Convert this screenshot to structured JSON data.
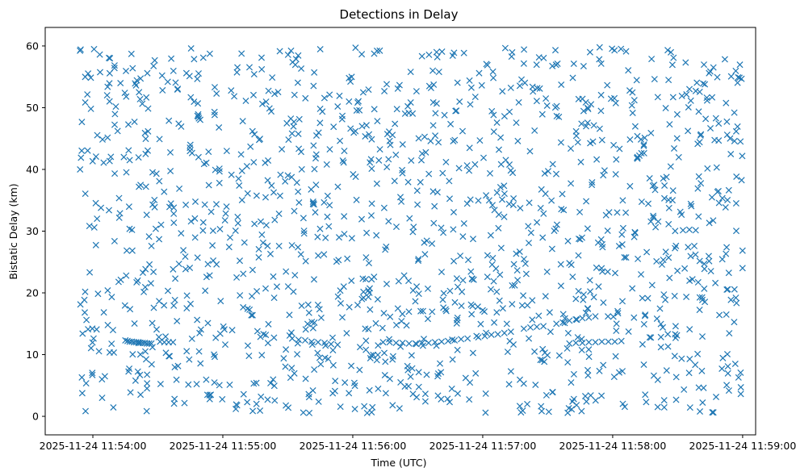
{
  "chart_data": {
    "type": "scatter",
    "title": "Detections in Delay",
    "xlabel": "Time (UTC)",
    "ylabel": "Bistatic Delay (km)",
    "marker": "x",
    "series_color": "#1f77b4",
    "x_unit": "seconds since 2025-11-24 11:54:00",
    "xlim": [
      -22,
      306
    ],
    "ylim": [
      -3,
      63
    ],
    "x_ticks": [
      0,
      60,
      120,
      180,
      240,
      300
    ],
    "x_tick_labels": [
      "2025-11-24 11:54:00",
      "2025-11-24 11:55:00",
      "2025-11-24 11:56:00",
      "2025-11-24 11:57:00",
      "2025-11-24 11:58:00",
      "2025-11-24 11:59:00"
    ],
    "y_ticks": [
      0,
      10,
      20,
      30,
      40,
      50,
      60
    ],
    "y_tick_labels": [
      "0",
      "10",
      "20",
      "30",
      "40",
      "50",
      "60"
    ],
    "track_segments": [
      {
        "t": [
          15,
          16,
          17,
          18,
          19,
          20,
          21,
          22,
          23,
          24,
          25,
          26,
          27
        ],
        "delay": [
          12.3,
          12.2,
          12.1,
          12.1,
          12.0,
          12.0,
          12.0,
          11.9,
          11.9,
          11.9,
          11.8,
          11.8,
          11.8
        ]
      },
      {
        "t": [
          31,
          33,
          35,
          37
        ],
        "delay": [
          12.1,
          12.0,
          12.0,
          12.0
        ]
      },
      {
        "t": [
          92,
          95,
          98,
          101,
          104,
          107,
          110,
          113
        ],
        "delay": [
          12.6,
          12.4,
          12.3,
          12.1,
          12.0,
          11.9,
          11.7,
          11.6
        ]
      },
      {
        "t": [
          134,
          137,
          140,
          143,
          146,
          149,
          152,
          155,
          158,
          161,
          164,
          167,
          170,
          173
        ],
        "delay": [
          12.0,
          12.0,
          11.9,
          11.9,
          11.8,
          11.8,
          11.9,
          11.9,
          12.0,
          12.1,
          12.2,
          12.3,
          12.5,
          12.6
        ]
      },
      {
        "t": [
          178,
          181,
          184,
          187,
          190,
          193
        ],
        "delay": [
          12.8,
          13.0,
          13.2,
          13.3,
          13.5,
          13.7
        ]
      },
      {
        "t": [
          199,
          202,
          205,
          208
        ],
        "delay": [
          14.2,
          14.4,
          14.5,
          14.6
        ]
      },
      {
        "t": [
          214,
          217,
          220,
          223,
          226,
          229,
          232
        ],
        "delay": [
          15.0,
          15.2,
          15.5,
          15.7,
          15.9,
          16.0,
          16.2
        ]
      },
      {
        "t": [
          220,
          223,
          226,
          229,
          232,
          235,
          238,
          241,
          244
        ],
        "delay": [
          11.8,
          11.9,
          11.9,
          12.0,
          12.0,
          12.1,
          12.1,
          12.1,
          12.2
        ]
      }
    ],
    "clutter_count": 1400,
    "clutter_seed": 1337,
    "clutter_range": {
      "t": [
        -6,
        300
      ],
      "delay": [
        0.5,
        59.8
      ]
    }
  }
}
